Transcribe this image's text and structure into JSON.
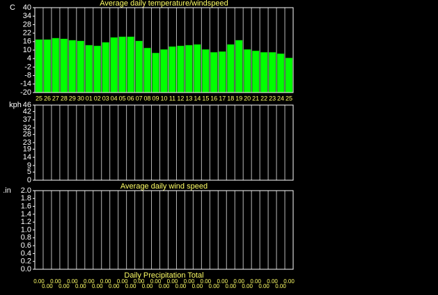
{
  "chart_data": [
    {
      "type": "bar",
      "title": "Average daily temperature/windspeed",
      "y_label": "C",
      "categories": [
        "25",
        "26",
        "27",
        "28",
        "29",
        "30",
        "01",
        "02",
        "03",
        "04",
        "05",
        "06",
        "07",
        "08",
        "09",
        "10",
        "11",
        "12",
        "13",
        "14",
        "15",
        "16",
        "17",
        "18",
        "19",
        "20",
        "21",
        "22",
        "23",
        "24",
        "25"
      ],
      "values": [
        17.5,
        17.5,
        18.5,
        18,
        17,
        16.5,
        13.5,
        13,
        15.5,
        19,
        19.5,
        19.5,
        16.5,
        11.5,
        8,
        10.5,
        12.5,
        13,
        13.5,
        14,
        10.5,
        8.5,
        9,
        14,
        17,
        10.5,
        9.5,
        8.5,
        8.5,
        7.5,
        4.5
      ],
      "color": "#00ff00",
      "ylim": [
        -20,
        40
      ],
      "yticks": [
        40,
        34,
        28,
        22,
        16,
        10,
        4,
        -2,
        -8,
        -14,
        -20
      ]
    },
    {
      "type": "bar",
      "title": "Average daily wind speed",
      "y_label": "kph",
      "ylim": [
        0,
        46
      ],
      "yticks": [
        46,
        42,
        37,
        32,
        28,
        23,
        19,
        14,
        9,
        5,
        0
      ]
    },
    {
      "type": "bar",
      "title": "Daily Precipitation Total",
      "y_label": ".in",
      "values": [
        0,
        0,
        0,
        0,
        0,
        0,
        0,
        0,
        0,
        0,
        0,
        0,
        0,
        0,
        0,
        0,
        0,
        0,
        0,
        0,
        0,
        0,
        0,
        0,
        0,
        0,
        0,
        0,
        0,
        0,
        0
      ],
      "value_labels": [
        "0.00",
        "0.00",
        "0.00",
        "0.00",
        "0.00",
        "0.00",
        "0.00",
        "0.00",
        "0.00",
        "0.00",
        "0.00",
        "0.00",
        "0.00",
        "0.00",
        "0.00",
        "0.00",
        "0.00",
        "0.00",
        "0.00",
        "0.00",
        "0.00",
        "0.00",
        "0.00",
        "0.00",
        "0.00",
        "0.00",
        "0.00",
        "0.00",
        "0.00",
        "0.00",
        "0.00"
      ],
      "color": "#00ffff",
      "ylim": [
        0,
        2
      ],
      "yticks": [
        {
          "value": 2,
          "label": "2.0"
        },
        {
          "value": 1.8,
          "label": "1.8"
        },
        {
          "value": 1.6,
          "label": "1.6"
        },
        {
          "value": 1.4,
          "label": "1.4"
        },
        {
          "value": 1.2,
          "label": "1.2"
        },
        {
          "value": 1,
          "label": "1.0"
        },
        {
          "value": 0.8,
          "label": "0.8"
        },
        {
          "value": 0.6,
          "label": "0.6"
        },
        {
          "value": 0.4,
          "label": "0.4"
        },
        {
          "value": 0.2,
          "label": "0.2"
        },
        {
          "value": 0,
          "label": "0.0"
        }
      ]
    }
  ]
}
